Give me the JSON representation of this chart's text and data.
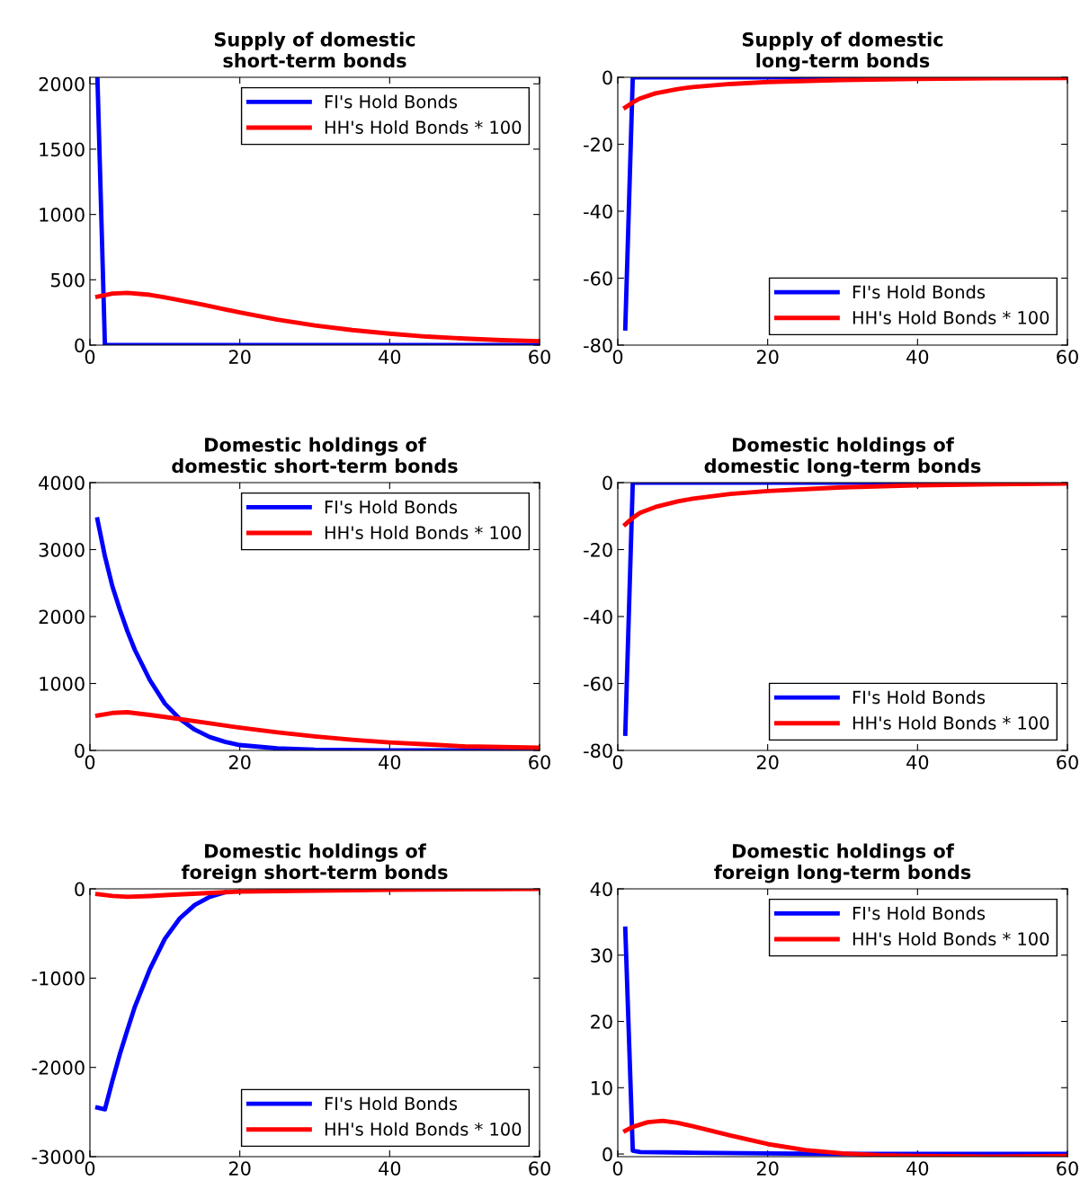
{
  "chart_data": [
    {
      "type": "line",
      "title": "Supply of domestic\nshort-term bonds",
      "xlim": [
        0,
        60
      ],
      "xticks": [
        0,
        20,
        40,
        60
      ],
      "ylim": [
        0,
        2050
      ],
      "yticks": [
        0,
        500,
        1000,
        1500,
        2000
      ],
      "legend": "top right",
      "grid": false,
      "series": [
        {
          "name": "FI's Hold Bonds",
          "color": "#0000ff",
          "x": [
            1,
            2,
            3,
            60
          ],
          "values": [
            2050,
            0,
            0,
            0
          ]
        },
        {
          "name": "HH's Hold Bonds * 100",
          "color": "#ff0000",
          "x": [
            1,
            3,
            5,
            8,
            10,
            15,
            20,
            25,
            30,
            35,
            40,
            45,
            50,
            55,
            60
          ],
          "values": [
            370,
            395,
            400,
            385,
            365,
            310,
            250,
            195,
            150,
            115,
            88,
            65,
            50,
            38,
            30
          ]
        }
      ]
    },
    {
      "type": "line",
      "title": "Supply of domestic\nlong-term bonds",
      "xlim": [
        0,
        60
      ],
      "xticks": [
        0,
        20,
        40,
        60
      ],
      "ylim": [
        -80,
        0
      ],
      "yticks": [
        -80,
        -60,
        -40,
        -20,
        0
      ],
      "legend": "bottom right",
      "grid": false,
      "series": [
        {
          "name": "FI's Hold Bonds",
          "color": "#0000ff",
          "x": [
            1,
            2,
            3,
            60
          ],
          "values": [
            -75,
            0,
            0,
            0
          ]
        },
        {
          "name": "HH's Hold Bonds * 100",
          "color": "#ff0000",
          "x": [
            1,
            2,
            3,
            5,
            8,
            10,
            15,
            20,
            30,
            40,
            50,
            60
          ],
          "values": [
            -9,
            -7.5,
            -6.3,
            -4.8,
            -3.5,
            -2.9,
            -2,
            -1.4,
            -0.8,
            -0.5,
            -0.3,
            -0.2
          ]
        }
      ]
    },
    {
      "type": "line",
      "title": "Domestic holdings of\ndomestic short-term bonds",
      "xlim": [
        0,
        60
      ],
      "xticks": [
        0,
        20,
        40,
        60
      ],
      "ylim": [
        0,
        4000
      ],
      "yticks": [
        0,
        1000,
        2000,
        3000,
        4000
      ],
      "legend": "top right",
      "grid": false,
      "series": [
        {
          "name": "FI's Hold Bonds",
          "color": "#0000ff",
          "x": [
            1,
            2,
            3,
            4,
            5,
            6,
            8,
            10,
            12,
            14,
            16,
            18,
            20,
            25,
            30,
            40,
            60
          ],
          "values": [
            3450,
            2900,
            2450,
            2100,
            1780,
            1500,
            1050,
            700,
            470,
            310,
            200,
            130,
            80,
            30,
            10,
            0,
            0
          ]
        },
        {
          "name": "HH's Hold Bonds * 100",
          "color": "#ff0000",
          "x": [
            1,
            3,
            5,
            8,
            10,
            15,
            20,
            25,
            30,
            35,
            40,
            45,
            50,
            55,
            60
          ],
          "values": [
            520,
            560,
            570,
            530,
            500,
            420,
            340,
            270,
            210,
            160,
            120,
            90,
            60,
            50,
            40
          ]
        }
      ]
    },
    {
      "type": "line",
      "title": "Domestic holdings of\ndomestic long-term bonds",
      "xlim": [
        0,
        60
      ],
      "xticks": [
        0,
        20,
        40,
        60
      ],
      "ylim": [
        -80,
        0
      ],
      "yticks": [
        -80,
        -60,
        -40,
        -20,
        0
      ],
      "legend": "bottom right",
      "grid": false,
      "series": [
        {
          "name": "FI's Hold Bonds",
          "color": "#0000ff",
          "x": [
            1,
            2,
            3,
            60
          ],
          "values": [
            -75,
            0,
            0,
            0
          ]
        },
        {
          "name": "HH's Hold Bonds * 100",
          "color": "#ff0000",
          "x": [
            1,
            2,
            3,
            5,
            8,
            10,
            15,
            20,
            30,
            40,
            50,
            60
          ],
          "values": [
            -12.5,
            -10.5,
            -9,
            -7.3,
            -5.6,
            -4.8,
            -3.4,
            -2.5,
            -1.4,
            -0.8,
            -0.5,
            -0.3
          ]
        }
      ]
    },
    {
      "type": "line",
      "title": "Domestic holdings of\nforeign short-term bonds",
      "xlim": [
        0,
        60
      ],
      "xticks": [
        0,
        20,
        40,
        60
      ],
      "ylim": [
        -3000,
        0
      ],
      "yticks": [
        -3000,
        -2000,
        -1000,
        0
      ],
      "legend": "bottom right",
      "grid": false,
      "series": [
        {
          "name": "FI's Hold Bonds",
          "color": "#0000ff",
          "x": [
            1,
            2,
            3,
            4,
            5,
            6,
            8,
            10,
            12,
            14,
            16,
            18
          ],
          "values": [
            -2450,
            -2470,
            -2150,
            -1850,
            -1580,
            -1320,
            -900,
            -560,
            -330,
            -180,
            -90,
            -40
          ]
        },
        {
          "name": "HH's Hold Bonds * 100",
          "color": "#ff0000",
          "x": [
            1,
            3,
            5,
            8,
            10,
            15,
            20,
            30,
            40,
            60
          ],
          "values": [
            -60,
            -80,
            -90,
            -80,
            -70,
            -50,
            -30,
            -20,
            -10,
            0
          ]
        }
      ]
    },
    {
      "type": "line",
      "title": "Domestic holdings of\nforeign long-term bonds",
      "xlim": [
        0,
        60
      ],
      "xticks": [
        0,
        20,
        40,
        60
      ],
      "ylim": [
        -0.4,
        40
      ],
      "yticks": [
        0,
        10,
        20,
        30,
        40
      ],
      "legend": "top right",
      "grid": false,
      "series": [
        {
          "name": "FI's Hold Bonds",
          "color": "#0000ff",
          "x": [
            1,
            2,
            3,
            10,
            20,
            30,
            60
          ],
          "values": [
            34,
            0.5,
            0.3,
            0.2,
            0.1,
            0,
            0
          ]
        },
        {
          "name": "HH's Hold Bonds * 100",
          "color": "#ff0000",
          "x": [
            1,
            2,
            4,
            6,
            8,
            10,
            15,
            20,
            25,
            30,
            35,
            40,
            50,
            60
          ],
          "values": [
            3.5,
            4.1,
            4.8,
            5,
            4.7,
            4.2,
            2.8,
            1.5,
            0.6,
            0.1,
            -0.2,
            -0.3,
            -0.4,
            -0.3
          ]
        }
      ]
    }
  ]
}
